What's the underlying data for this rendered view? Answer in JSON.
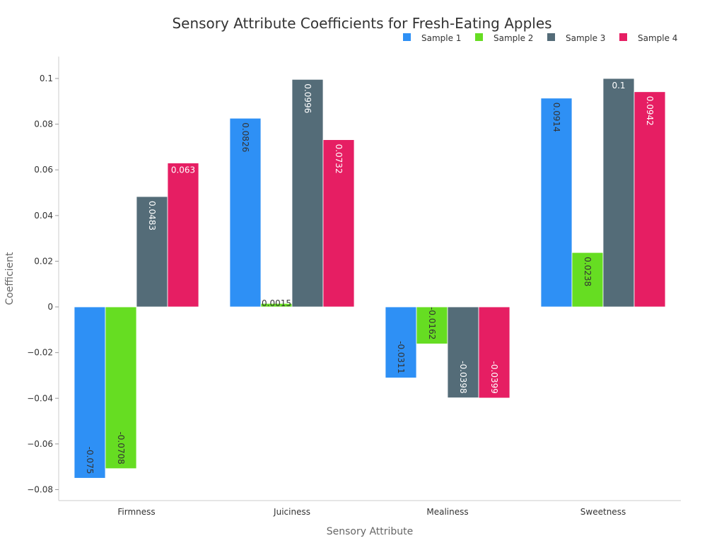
{
  "chart_data": {
    "type": "bar",
    "title": "Sensory Attribute Coefficients for Fresh-Eating Apples",
    "xlabel": "Sensory Attribute",
    "ylabel": "Coefficient",
    "categories": [
      "Firmness",
      "Juiciness",
      "Mealiness",
      "Sweetness"
    ],
    "ylim": [
      -0.0848,
      0.1096
    ],
    "yticks": [
      -0.08,
      -0.06,
      -0.04,
      -0.02,
      0,
      0.02,
      0.04,
      0.06,
      0.08,
      0.1
    ],
    "ytick_labels": [
      "−0.08",
      "−0.06",
      "−0.04",
      "−0.02",
      "0",
      "0.02",
      "0.04",
      "0.06",
      "0.08",
      "0.1"
    ],
    "grid": false,
    "legend": "top-right",
    "series": [
      {
        "name": "Sample 1",
        "color": "#2e90f5",
        "values": [
          -0.075,
          0.0826,
          -0.0311,
          0.0914
        ],
        "labels": [
          "-0.075",
          "0.0826",
          "-0.0311",
          "0.0914"
        ],
        "label_color": "#333333"
      },
      {
        "name": "Sample 2",
        "color": "#66dd22",
        "values": [
          -0.0708,
          0.0015,
          -0.0162,
          0.0238
        ],
        "labels": [
          "-0.0708",
          "0.0015",
          "-0.0162",
          "0.0238"
        ],
        "label_color": "#333333"
      },
      {
        "name": "Sample 3",
        "color": "#546c78",
        "values": [
          0.0483,
          0.0996,
          -0.0398,
          0.1
        ],
        "labels": [
          "0.0483",
          "0.0996",
          "-0.0398",
          "0.1"
        ],
        "label_color": "#ffffff"
      },
      {
        "name": "Sample 4",
        "color": "#e61e63",
        "values": [
          0.063,
          0.0732,
          -0.0399,
          0.0942
        ],
        "labels": [
          "0.063",
          "0.0732",
          "-0.0399",
          "0.0942"
        ],
        "label_color": "#ffffff"
      }
    ]
  }
}
